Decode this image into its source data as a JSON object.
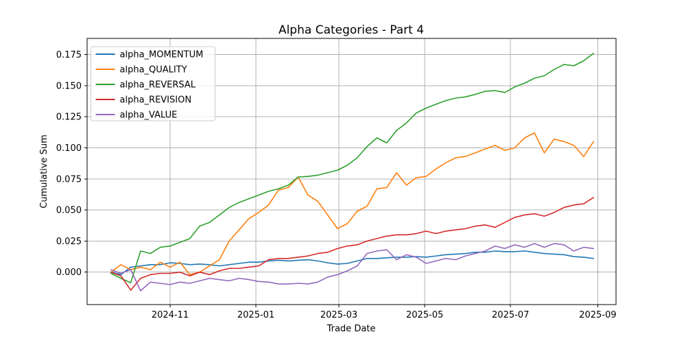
{
  "figure": {
    "title": "Alpha Categories - Part 4",
    "xlabel": "Trade Date",
    "ylabel": "Cumulative Sum"
  },
  "chart_data": {
    "type": "line",
    "title": "Alpha Categories - Part 4",
    "xlabel": "Trade Date",
    "ylabel": "Cumulative Sum",
    "grid": true,
    "legend_position": "upper left",
    "grid_color": "#b0b0b0",
    "spine_color": "#000000",
    "xlim": [
      "2024-09-03",
      "2025-09-14"
    ],
    "ylim": [
      -0.0261,
      0.188
    ],
    "xticks": [
      {
        "label": "2024-11",
        "date": "2024-11-01"
      },
      {
        "label": "2025-01",
        "date": "2025-01-01"
      },
      {
        "label": "2025-03",
        "date": "2025-03-01"
      },
      {
        "label": "2025-05",
        "date": "2025-05-01"
      },
      {
        "label": "2025-07",
        "date": "2025-07-01"
      },
      {
        "label": "2025-09",
        "date": "2025-09-01"
      }
    ],
    "yticks": [
      {
        "label": "0.000",
        "value": 0.0
      },
      {
        "label": "0.025",
        "value": 0.025
      },
      {
        "label": "0.050",
        "value": 0.05
      },
      {
        "label": "0.075",
        "value": 0.075
      },
      {
        "label": "0.100",
        "value": 0.1
      },
      {
        "label": "0.125",
        "value": 0.125
      },
      {
        "label": "0.150",
        "value": 0.15
      },
      {
        "label": "0.175",
        "value": 0.175
      }
    ],
    "x": [
      "2024-09-20",
      "2024-09-27",
      "2024-10-04",
      "2024-10-11",
      "2024-10-18",
      "2024-10-25",
      "2024-11-01",
      "2024-11-08",
      "2024-11-15",
      "2024-11-22",
      "2024-11-29",
      "2024-12-06",
      "2024-12-13",
      "2024-12-20",
      "2024-12-27",
      "2025-01-03",
      "2025-01-10",
      "2025-01-17",
      "2025-01-24",
      "2025-01-31",
      "2025-02-07",
      "2025-02-14",
      "2025-02-21",
      "2025-02-28",
      "2025-03-07",
      "2025-03-14",
      "2025-03-21",
      "2025-03-28",
      "2025-04-04",
      "2025-04-11",
      "2025-04-18",
      "2025-04-25",
      "2025-05-02",
      "2025-05-09",
      "2025-05-16",
      "2025-05-23",
      "2025-05-30",
      "2025-06-06",
      "2025-06-13",
      "2025-06-20",
      "2025-06-27",
      "2025-07-04",
      "2025-07-11",
      "2025-07-18",
      "2025-07-25",
      "2025-08-01",
      "2025-08-08",
      "2025-08-15",
      "2025-08-22",
      "2025-08-29"
    ],
    "series": [
      {
        "name": "alpha_MOMENTUM",
        "color": "#1f77b4",
        "values": [
          0.0,
          -0.002,
          0.004,
          0.005,
          0.006,
          0.006,
          0.0075,
          0.007,
          0.006,
          0.0065,
          0.006,
          0.005,
          0.006,
          0.007,
          0.008,
          0.008,
          0.009,
          0.0095,
          0.009,
          0.0095,
          0.01,
          0.009,
          0.0075,
          0.0065,
          0.007,
          0.009,
          0.011,
          0.011,
          0.0115,
          0.012,
          0.012,
          0.0125,
          0.012,
          0.013,
          0.014,
          0.0145,
          0.015,
          0.016,
          0.016,
          0.017,
          0.0165,
          0.0165,
          0.017,
          0.016,
          0.015,
          0.0145,
          0.014,
          0.0125,
          0.012,
          0.011
        ]
      },
      {
        "name": "alpha_QUALITY",
        "color": "#ff7f0e",
        "values": [
          0.0,
          0.006,
          0.002,
          0.004,
          0.002,
          0.008,
          0.004,
          0.008,
          -0.002,
          0.0,
          0.005,
          0.01,
          0.025,
          0.034,
          0.043,
          0.048,
          0.054,
          0.066,
          0.068,
          0.0765,
          0.062,
          0.057,
          0.046,
          0.035,
          0.039,
          0.049,
          0.053,
          0.067,
          0.068,
          0.08,
          0.07,
          0.076,
          0.077,
          0.083,
          0.088,
          0.092,
          0.093,
          0.096,
          0.099,
          0.102,
          0.098,
          0.1,
          0.108,
          0.112,
          0.096,
          0.107,
          0.105,
          0.102,
          0.093,
          0.105
        ]
      },
      {
        "name": "alpha_REVERSAL",
        "color": "#2ca02c",
        "values": [
          -0.001,
          -0.005,
          -0.0085,
          0.017,
          0.015,
          0.02,
          0.021,
          0.024,
          0.027,
          0.037,
          0.04,
          0.046,
          0.052,
          0.056,
          0.059,
          0.062,
          0.065,
          0.067,
          0.07,
          0.0765,
          0.077,
          0.078,
          0.08,
          0.082,
          0.086,
          0.092,
          0.101,
          0.108,
          0.104,
          0.114,
          0.12,
          0.128,
          0.132,
          0.135,
          0.138,
          0.14,
          0.141,
          0.143,
          0.1455,
          0.146,
          0.1445,
          0.149,
          0.152,
          0.156,
          0.158,
          0.163,
          0.167,
          0.166,
          0.17,
          0.176
        ]
      },
      {
        "name": "alpha_REVISION",
        "color": "#d62728",
        "values": [
          0.0,
          -0.003,
          -0.0145,
          -0.005,
          -0.002,
          -0.001,
          -0.001,
          0.0,
          -0.003,
          0.0,
          -0.002,
          0.001,
          0.003,
          0.003,
          0.004,
          0.005,
          0.01,
          0.011,
          0.011,
          0.012,
          0.013,
          0.015,
          0.016,
          0.019,
          0.021,
          0.022,
          0.025,
          0.027,
          0.029,
          0.03,
          0.03,
          0.031,
          0.033,
          0.031,
          0.033,
          0.034,
          0.035,
          0.037,
          0.038,
          0.036,
          0.04,
          0.044,
          0.046,
          0.047,
          0.045,
          0.048,
          0.052,
          0.054,
          0.055,
          0.06
        ]
      },
      {
        "name": "alpha_VALUE",
        "color": "#9467bd",
        "values": [
          0.002,
          -0.001,
          0.002,
          -0.015,
          -0.008,
          -0.009,
          -0.01,
          -0.008,
          -0.009,
          -0.007,
          -0.005,
          -0.006,
          -0.007,
          -0.005,
          -0.006,
          -0.0075,
          -0.008,
          -0.0095,
          -0.0095,
          -0.009,
          -0.0095,
          -0.008,
          -0.004,
          -0.002,
          0.001,
          0.005,
          0.015,
          0.017,
          0.018,
          0.01,
          0.014,
          0.012,
          0.007,
          0.009,
          0.011,
          0.01,
          0.013,
          0.015,
          0.017,
          0.021,
          0.019,
          0.022,
          0.02,
          0.023,
          0.02,
          0.023,
          0.022,
          0.017,
          0.02,
          0.019
        ]
      }
    ]
  }
}
